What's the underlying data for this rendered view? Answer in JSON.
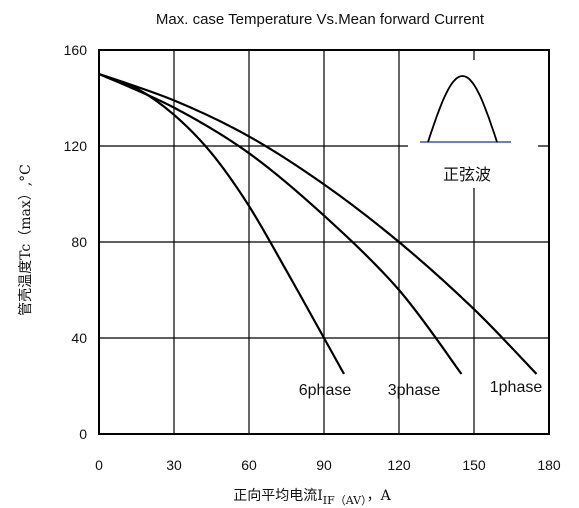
{
  "chart_data": {
    "type": "line",
    "title": "Max. case Temperature Vs.Mean forward Current",
    "xlabel": "正向平均电流IIF（AV），A",
    "xlabel_parts": {
      "pre": "正向平均电流I",
      "sub": "IF（AV）",
      "post": "，A"
    },
    "ylabel": "管壳温度Tc（max）,°C",
    "xlim": [
      0,
      180
    ],
    "ylim": [
      0,
      160
    ],
    "xticks": [
      0,
      30,
      60,
      90,
      120,
      150,
      180
    ],
    "yticks": [
      0,
      40,
      80,
      120,
      160
    ],
    "grid": true,
    "series": [
      {
        "name": "1phase",
        "x": [
          0,
          30,
          60,
          90,
          120,
          150,
          175
        ],
        "y": [
          150,
          139,
          124,
          104,
          80,
          52,
          25
        ]
      },
      {
        "name": "3phase",
        "x": [
          0,
          30,
          60,
          90,
          120,
          145
        ],
        "y": [
          150,
          136,
          117,
          91,
          60,
          25
        ]
      },
      {
        "name": "6phase",
        "x": [
          0,
          15,
          30,
          45,
          60,
          75,
          90,
          98
        ],
        "y": [
          150,
          144,
          133,
          117,
          95,
          68,
          40,
          25
        ]
      }
    ],
    "inset": {
      "label": "正弦波",
      "shape": "half-sine"
    }
  }
}
